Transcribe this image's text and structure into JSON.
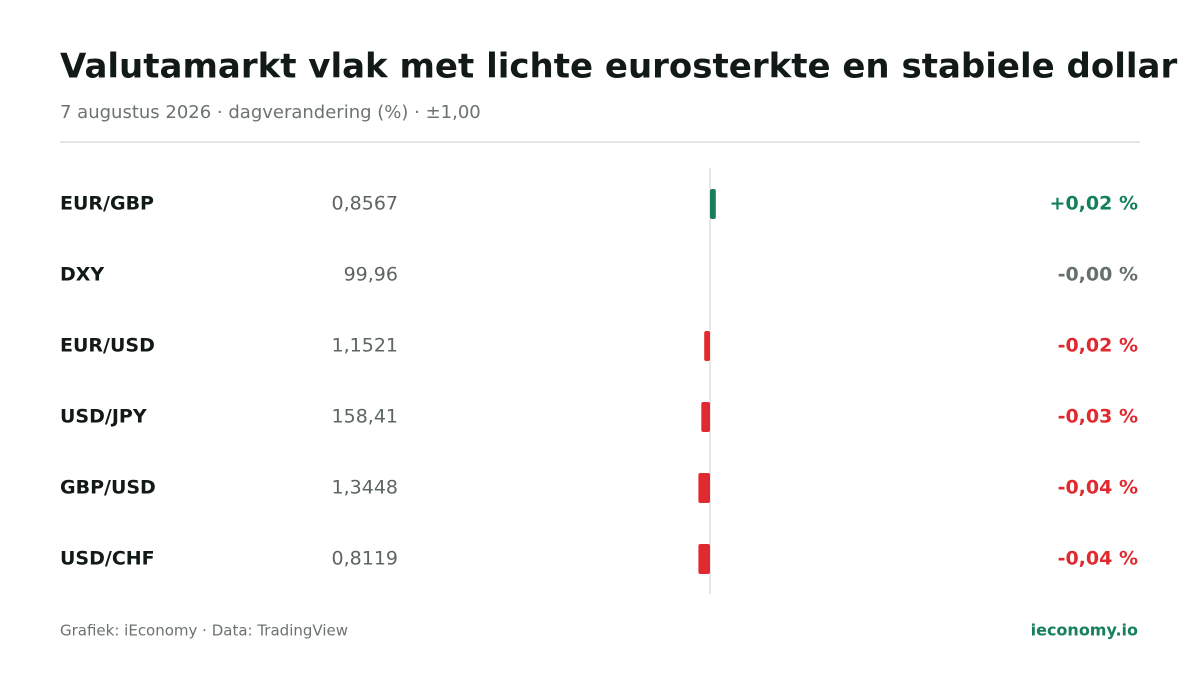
{
  "chart_data": {
    "type": "bar",
    "orientation": "horizontal",
    "title": "Valutamarkt vlak met lichte eurosterkte en stabiele dollar",
    "subtitle": "7 augustus 2026 · dagverandering (%) · ±1,00",
    "categories": [
      "EUR/GBP",
      "DXY",
      "EUR/USD",
      "USD/JPY",
      "GBP/USD",
      "USD/CHF"
    ],
    "prices": [
      "0,8567",
      "99,96",
      "1,1521",
      "158,41",
      "1,3448",
      "0,8119"
    ],
    "values": [
      0.02,
      0,
      -0.02,
      -0.03,
      -0.04,
      -0.04
    ],
    "value_labels": [
      "+0,02 %",
      "-0,00 %",
      "-0,02 %",
      "-0,03 %",
      "-0,04 %",
      "-0,04 %"
    ],
    "xlim": [
      -1,
      1
    ],
    "color_positive": "#16805a",
    "color_negative": "#e02a2f",
    "color_zero": "#66706c",
    "source": "Grafiek: iEconomy · Data: TradingView",
    "brand": "ieconomy.io"
  }
}
